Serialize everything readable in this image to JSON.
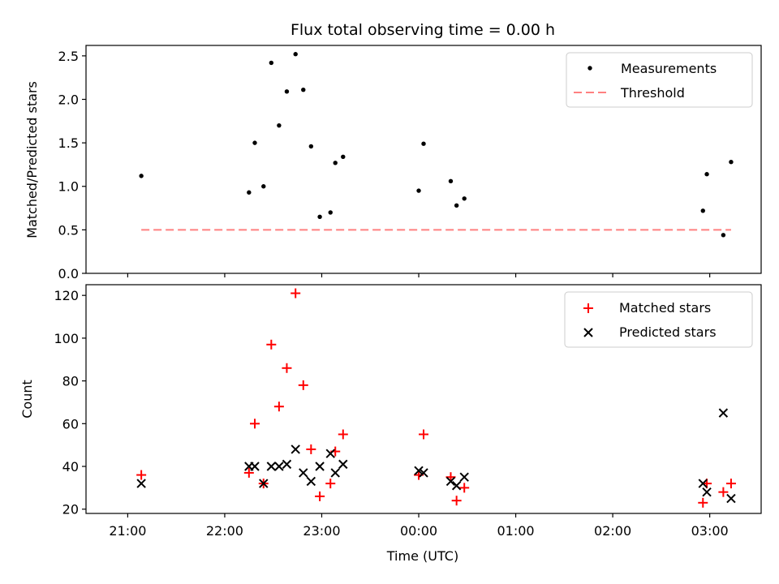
{
  "chart_data": {
    "type": "scatter",
    "title": "Flux total observing time = 0.00 h",
    "xlabel": "Time (UTC)",
    "x_unit": "hours after 00:00 UTC (negative = previous day)",
    "xlim": [
      -3.43,
      3.53
    ],
    "x_ticks": [
      {
        "value": -3,
        "label": "21:00"
      },
      {
        "value": -2,
        "label": "22:00"
      },
      {
        "value": -1,
        "label": "23:00"
      },
      {
        "value": 0,
        "label": "00:00"
      },
      {
        "value": 1,
        "label": "01:00"
      },
      {
        "value": 2,
        "label": "02:00"
      },
      {
        "value": 3,
        "label": "03:00"
      }
    ],
    "top": {
      "ylabel": "Matched/Predicted stars",
      "ylim": [
        0,
        2.62
      ],
      "y_ticks": [
        {
          "value": 0,
          "label": "0.0"
        },
        {
          "value": 0.5,
          "label": "0.5"
        },
        {
          "value": 1.0,
          "label": "1.0"
        },
        {
          "value": 1.5,
          "label": "1.5"
        },
        {
          "value": 2.0,
          "label": "2.0"
        },
        {
          "value": 2.5,
          "label": "2.5"
        }
      ],
      "legend": [
        "Measurements",
        "Threshold"
      ],
      "legend_position": "upper right",
      "threshold": {
        "value": 0.5,
        "x_range": [
          -2.86,
          3.22
        ],
        "color": "#ff8080"
      },
      "measurements": [
        [
          -2.86,
          1.12
        ],
        [
          -1.75,
          0.93
        ],
        [
          -1.69,
          1.5
        ],
        [
          -1.6,
          1.0
        ],
        [
          -1.52,
          2.42
        ],
        [
          -1.44,
          1.7
        ],
        [
          -1.36,
          2.09
        ],
        [
          -1.27,
          2.52
        ],
        [
          -1.19,
          2.11
        ],
        [
          -1.11,
          1.46
        ],
        [
          -1.02,
          0.65
        ],
        [
          -0.91,
          0.7
        ],
        [
          -0.86,
          1.27
        ],
        [
          -0.78,
          1.34
        ],
        [
          0.0,
          0.95
        ],
        [
          0.05,
          1.49
        ],
        [
          0.33,
          1.06
        ],
        [
          0.39,
          0.78
        ],
        [
          0.47,
          0.86
        ],
        [
          2.93,
          0.72
        ],
        [
          2.97,
          1.14
        ],
        [
          3.14,
          0.44
        ],
        [
          3.22,
          1.28
        ]
      ],
      "marker_color": "#000000"
    },
    "bottom": {
      "ylabel": "Count",
      "ylim": [
        18,
        125
      ],
      "y_ticks": [
        {
          "value": 20,
          "label": "20"
        },
        {
          "value": 40,
          "label": "40"
        },
        {
          "value": 60,
          "label": "60"
        },
        {
          "value": 80,
          "label": "80"
        },
        {
          "value": 100,
          "label": "100"
        },
        {
          "value": 120,
          "label": "120"
        }
      ],
      "legend": [
        "Matched stars",
        "Predicted stars"
      ],
      "legend_position": "upper right",
      "series": [
        {
          "name": "Matched stars",
          "marker": "+",
          "color": "#ff0000",
          "points": [
            [
              -2.86,
              36
            ],
            [
              -1.75,
              37
            ],
            [
              -1.69,
              60
            ],
            [
              -1.6,
              32
            ],
            [
              -1.52,
              97
            ],
            [
              -1.44,
              68
            ],
            [
              -1.36,
              86
            ],
            [
              -1.27,
              121
            ],
            [
              -1.19,
              78
            ],
            [
              -1.11,
              48
            ],
            [
              -1.02,
              26
            ],
            [
              -0.91,
              32
            ],
            [
              -0.86,
              47
            ],
            [
              -0.78,
              55
            ],
            [
              0.0,
              36
            ],
            [
              0.05,
              55
            ],
            [
              0.33,
              35
            ],
            [
              0.39,
              24
            ],
            [
              0.47,
              30
            ],
            [
              2.93,
              23
            ],
            [
              2.97,
              32
            ],
            [
              3.14,
              28
            ],
            [
              3.22,
              32
            ]
          ]
        },
        {
          "name": "Predicted stars",
          "marker": "x",
          "color": "#000000",
          "points": [
            [
              -2.86,
              32
            ],
            [
              -1.75,
              40
            ],
            [
              -1.69,
              40
            ],
            [
              -1.6,
              32
            ],
            [
              -1.52,
              40
            ],
            [
              -1.44,
              40
            ],
            [
              -1.36,
              41
            ],
            [
              -1.27,
              48
            ],
            [
              -1.19,
              37
            ],
            [
              -1.11,
              33
            ],
            [
              -1.02,
              40
            ],
            [
              -0.91,
              46
            ],
            [
              -0.86,
              37
            ],
            [
              -0.78,
              41
            ],
            [
              0.0,
              38
            ],
            [
              0.05,
              37
            ],
            [
              0.33,
              33
            ],
            [
              0.39,
              31
            ],
            [
              0.47,
              35
            ],
            [
              2.93,
              32
            ],
            [
              2.97,
              28
            ],
            [
              3.14,
              65
            ],
            [
              3.22,
              25
            ]
          ]
        }
      ]
    }
  }
}
